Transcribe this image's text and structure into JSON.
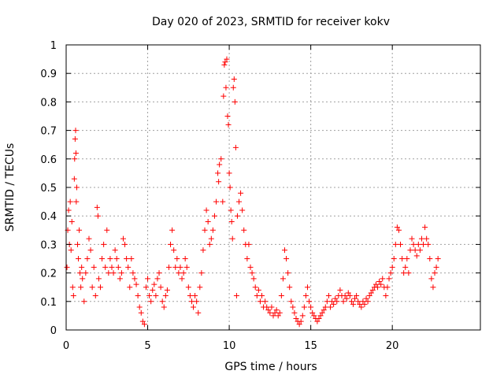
{
  "chart_data": {
    "type": "scatter",
    "title": "Day 020 of 2023, SRMTID for receiver kokv",
    "xlabel": "GPS time / hours",
    "ylabel": "SRMTID / TECUs",
    "xlim": [
      0,
      25.4
    ],
    "ylim": [
      0,
      1
    ],
    "xticks": [
      "0",
      "5",
      "10",
      "15",
      "20"
    ],
    "xtick_values": [
      0,
      5,
      10,
      15,
      20
    ],
    "yticks": [
      "0",
      "0.1",
      "0.2",
      "0.3",
      "0.4",
      "0.5",
      "0.6",
      "0.7",
      "0.8",
      "0.9",
      "1"
    ],
    "ytick_values": [
      0,
      0.1,
      0.2,
      0.3,
      0.4,
      0.5,
      0.6,
      0.7,
      0.8,
      0.9,
      1.0
    ],
    "grid": true,
    "marker": "plus",
    "color": "#ff0000",
    "series": [
      {
        "name": "SRMTID",
        "points": [
          [
            0.05,
            0.22
          ],
          [
            0.1,
            0.35
          ],
          [
            0.15,
            0.42
          ],
          [
            0.2,
            0.3
          ],
          [
            0.25,
            0.45
          ],
          [
            0.3,
            0.28
          ],
          [
            0.35,
            0.38
          ],
          [
            0.4,
            0.15
          ],
          [
            0.45,
            0.12
          ],
          [
            0.5,
            0.53
          ],
          [
            0.52,
            0.6
          ],
          [
            0.55,
            0.67
          ],
          [
            0.58,
            0.7
          ],
          [
            0.6,
            0.62
          ],
          [
            0.62,
            0.45
          ],
          [
            0.65,
            0.5
          ],
          [
            0.7,
            0.3
          ],
          [
            0.75,
            0.25
          ],
          [
            0.8,
            0.35
          ],
          [
            0.85,
            0.2
          ],
          [
            0.9,
            0.15
          ],
          [
            0.95,
            0.22
          ],
          [
            1.0,
            0.18
          ],
          [
            1.1,
            0.1
          ],
          [
            1.2,
            0.2
          ],
          [
            1.3,
            0.25
          ],
          [
            1.4,
            0.32
          ],
          [
            1.5,
            0.28
          ],
          [
            1.6,
            0.15
          ],
          [
            1.7,
            0.22
          ],
          [
            1.8,
            0.12
          ],
          [
            1.9,
            0.43
          ],
          [
            1.95,
            0.4
          ],
          [
            2.0,
            0.18
          ],
          [
            2.1,
            0.15
          ],
          [
            2.2,
            0.25
          ],
          [
            2.3,
            0.3
          ],
          [
            2.4,
            0.22
          ],
          [
            2.5,
            0.35
          ],
          [
            2.6,
            0.2
          ],
          [
            2.7,
            0.25
          ],
          [
            2.8,
            0.22
          ],
          [
            2.9,
            0.2
          ],
          [
            3.0,
            0.28
          ],
          [
            3.1,
            0.25
          ],
          [
            3.2,
            0.22
          ],
          [
            3.3,
            0.18
          ],
          [
            3.4,
            0.2
          ],
          [
            3.5,
            0.32
          ],
          [
            3.6,
            0.3
          ],
          [
            3.7,
            0.25
          ],
          [
            3.8,
            0.22
          ],
          [
            3.9,
            0.15
          ],
          [
            4.0,
            0.25
          ],
          [
            4.1,
            0.2
          ],
          [
            4.2,
            0.18
          ],
          [
            4.3,
            0.16
          ],
          [
            4.4,
            0.12
          ],
          [
            4.5,
            0.08
          ],
          [
            4.6,
            0.06
          ],
          [
            4.7,
            0.03
          ],
          [
            4.8,
            0.02
          ],
          [
            4.9,
            0.15
          ],
          [
            5.0,
            0.18
          ],
          [
            5.1,
            0.12
          ],
          [
            5.2,
            0.1
          ],
          [
            5.3,
            0.14
          ],
          [
            5.4,
            0.16
          ],
          [
            5.5,
            0.12
          ],
          [
            5.6,
            0.18
          ],
          [
            5.7,
            0.2
          ],
          [
            5.8,
            0.15
          ],
          [
            5.9,
            0.1
          ],
          [
            6.0,
            0.08
          ],
          [
            6.1,
            0.12
          ],
          [
            6.2,
            0.14
          ],
          [
            6.3,
            0.22
          ],
          [
            6.4,
            0.3
          ],
          [
            6.5,
            0.35
          ],
          [
            6.6,
            0.28
          ],
          [
            6.7,
            0.22
          ],
          [
            6.8,
            0.25
          ],
          [
            6.9,
            0.2
          ],
          [
            7.0,
            0.22
          ],
          [
            7.1,
            0.18
          ],
          [
            7.2,
            0.2
          ],
          [
            7.3,
            0.25
          ],
          [
            7.4,
            0.22
          ],
          [
            7.5,
            0.15
          ],
          [
            7.6,
            0.12
          ],
          [
            7.7,
            0.1
          ],
          [
            7.8,
            0.08
          ],
          [
            7.9,
            0.12
          ],
          [
            8.0,
            0.1
          ],
          [
            8.1,
            0.06
          ],
          [
            8.2,
            0.15
          ],
          [
            8.3,
            0.2
          ],
          [
            8.4,
            0.28
          ],
          [
            8.5,
            0.35
          ],
          [
            8.6,
            0.42
          ],
          [
            8.7,
            0.38
          ],
          [
            8.8,
            0.3
          ],
          [
            8.9,
            0.32
          ],
          [
            9.0,
            0.35
          ],
          [
            9.1,
            0.4
          ],
          [
            9.2,
            0.45
          ],
          [
            9.3,
            0.55
          ],
          [
            9.35,
            0.52
          ],
          [
            9.4,
            0.58
          ],
          [
            9.5,
            0.6
          ],
          [
            9.6,
            0.45
          ],
          [
            9.65,
            0.82
          ],
          [
            9.7,
            0.93
          ],
          [
            9.75,
            0.94
          ],
          [
            9.8,
            0.85
          ],
          [
            9.85,
            0.95
          ],
          [
            9.9,
            0.75
          ],
          [
            9.95,
            0.72
          ],
          [
            10.0,
            0.55
          ],
          [
            10.05,
            0.5
          ],
          [
            10.1,
            0.42
          ],
          [
            10.15,
            0.38
          ],
          [
            10.2,
            0.32
          ],
          [
            10.25,
            0.85
          ],
          [
            10.3,
            0.88
          ],
          [
            10.35,
            0.8
          ],
          [
            10.4,
            0.64
          ],
          [
            10.45,
            0.12
          ],
          [
            10.5,
            0.4
          ],
          [
            10.6,
            0.45
          ],
          [
            10.7,
            0.48
          ],
          [
            10.8,
            0.42
          ],
          [
            10.9,
            0.35
          ],
          [
            11.0,
            0.3
          ],
          [
            11.1,
            0.25
          ],
          [
            11.2,
            0.3
          ],
          [
            11.3,
            0.22
          ],
          [
            11.4,
            0.2
          ],
          [
            11.5,
            0.18
          ],
          [
            11.6,
            0.15
          ],
          [
            11.7,
            0.12
          ],
          [
            11.8,
            0.14
          ],
          [
            11.9,
            0.1
          ],
          [
            12.0,
            0.12
          ],
          [
            12.1,
            0.08
          ],
          [
            12.2,
            0.1
          ],
          [
            12.3,
            0.08
          ],
          [
            12.4,
            0.07
          ],
          [
            12.5,
            0.06
          ],
          [
            12.6,
            0.08
          ],
          [
            12.7,
            0.05
          ],
          [
            12.8,
            0.06
          ],
          [
            12.9,
            0.07
          ],
          [
            13.0,
            0.05
          ],
          [
            13.1,
            0.06
          ],
          [
            13.2,
            0.12
          ],
          [
            13.3,
            0.18
          ],
          [
            13.4,
            0.28
          ],
          [
            13.5,
            0.25
          ],
          [
            13.6,
            0.2
          ],
          [
            13.7,
            0.15
          ],
          [
            13.8,
            0.1
          ],
          [
            13.9,
            0.08
          ],
          [
            14.0,
            0.06
          ],
          [
            14.1,
            0.04
          ],
          [
            14.2,
            0.03
          ],
          [
            14.3,
            0.02
          ],
          [
            14.4,
            0.03
          ],
          [
            14.5,
            0.05
          ],
          [
            14.6,
            0.08
          ],
          [
            14.7,
            0.12
          ],
          [
            14.8,
            0.15
          ],
          [
            14.9,
            0.1
          ],
          [
            15.0,
            0.08
          ],
          [
            15.1,
            0.06
          ],
          [
            15.2,
            0.05
          ],
          [
            15.3,
            0.04
          ],
          [
            15.4,
            0.03
          ],
          [
            15.5,
            0.04
          ],
          [
            15.6,
            0.05
          ],
          [
            15.7,
            0.06
          ],
          [
            15.8,
            0.07
          ],
          [
            15.9,
            0.08
          ],
          [
            16.0,
            0.1
          ],
          [
            16.1,
            0.12
          ],
          [
            16.2,
            0.08
          ],
          [
            16.3,
            0.1
          ],
          [
            16.4,
            0.09
          ],
          [
            16.5,
            0.11
          ],
          [
            16.6,
            0.1
          ],
          [
            16.7,
            0.12
          ],
          [
            16.8,
            0.14
          ],
          [
            16.9,
            0.12
          ],
          [
            17.0,
            0.1
          ],
          [
            17.1,
            0.12
          ],
          [
            17.2,
            0.11
          ],
          [
            17.3,
            0.13
          ],
          [
            17.4,
            0.12
          ],
          [
            17.5,
            0.1
          ],
          [
            17.6,
            0.09
          ],
          [
            17.7,
            0.11
          ],
          [
            17.8,
            0.12
          ],
          [
            17.9,
            0.1
          ],
          [
            18.0,
            0.09
          ],
          [
            18.1,
            0.08
          ],
          [
            18.2,
            0.1
          ],
          [
            18.3,
            0.09
          ],
          [
            18.4,
            0.11
          ],
          [
            18.5,
            0.1
          ],
          [
            18.6,
            0.12
          ],
          [
            18.7,
            0.13
          ],
          [
            18.8,
            0.14
          ],
          [
            18.9,
            0.15
          ],
          [
            19.0,
            0.16
          ],
          [
            19.1,
            0.15
          ],
          [
            19.2,
            0.17
          ],
          [
            19.3,
            0.16
          ],
          [
            19.4,
            0.18
          ],
          [
            19.5,
            0.15
          ],
          [
            19.6,
            0.12
          ],
          [
            19.7,
            0.15
          ],
          [
            19.8,
            0.18
          ],
          [
            19.9,
            0.2
          ],
          [
            20.0,
            0.22
          ],
          [
            20.1,
            0.25
          ],
          [
            20.2,
            0.3
          ],
          [
            20.3,
            0.36
          ],
          [
            20.4,
            0.35
          ],
          [
            20.5,
            0.3
          ],
          [
            20.6,
            0.25
          ],
          [
            20.7,
            0.2
          ],
          [
            20.8,
            0.22
          ],
          [
            20.9,
            0.25
          ],
          [
            21.0,
            0.2
          ],
          [
            21.1,
            0.28
          ],
          [
            21.2,
            0.32
          ],
          [
            21.3,
            0.3
          ],
          [
            21.4,
            0.28
          ],
          [
            21.5,
            0.26
          ],
          [
            21.6,
            0.3
          ],
          [
            21.7,
            0.28
          ],
          [
            21.8,
            0.32
          ],
          [
            21.9,
            0.3
          ],
          [
            22.0,
            0.36
          ],
          [
            22.1,
            0.32
          ],
          [
            22.2,
            0.3
          ],
          [
            22.3,
            0.25
          ],
          [
            22.4,
            0.18
          ],
          [
            22.5,
            0.15
          ],
          [
            22.6,
            0.2
          ],
          [
            22.7,
            0.22
          ],
          [
            22.8,
            0.25
          ]
        ]
      }
    ]
  }
}
